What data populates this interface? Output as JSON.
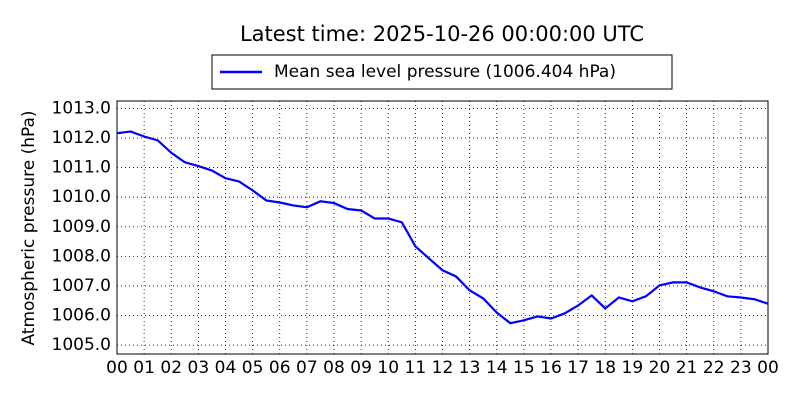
{
  "chart_data": {
    "type": "line",
    "title": "Latest time: 2025-10-26 00:00:00 UTC",
    "ylabel": "Atmospheric pressure (hPa)",
    "x": [
      0,
      0.5,
      1,
      1.5,
      2,
      2.5,
      3,
      3.5,
      4,
      4.5,
      5,
      5.5,
      6,
      6.5,
      7,
      7.5,
      8,
      8.5,
      9,
      9.5,
      10,
      10.5,
      11,
      11.5,
      12,
      12.5,
      13,
      13.5,
      14,
      14.5,
      15,
      15.5,
      16,
      16.5,
      17,
      17.5,
      18,
      18.5,
      19,
      19.5,
      20,
      20.5,
      21,
      21.5,
      22,
      22.5,
      23,
      23.5,
      24
    ],
    "series": [
      {
        "name": "Mean sea level pressure (1006.404 hPa)",
        "color": "#0000ff",
        "values": [
          1012.16,
          1012.22,
          1012.05,
          1011.92,
          1011.5,
          1011.18,
          1011.05,
          1010.9,
          1010.64,
          1010.53,
          1010.23,
          1009.89,
          1009.82,
          1009.72,
          1009.66,
          1009.86,
          1009.8,
          1009.6,
          1009.55,
          1009.28,
          1009.28,
          1009.15,
          1008.34,
          1007.93,
          1007.53,
          1007.32,
          1006.85,
          1006.58,
          1006.1,
          1005.74,
          1005.84,
          1005.97,
          1005.9,
          1006.07,
          1006.34,
          1006.68,
          1006.24,
          1006.61,
          1006.48,
          1006.65,
          1007.02,
          1007.12,
          1007.12,
          1006.95,
          1006.82,
          1006.65,
          1006.61,
          1006.55,
          1006.4
        ]
      }
    ],
    "xlim": [
      0,
      24
    ],
    "xticks": [
      {
        "value": 0,
        "label": "00"
      },
      {
        "value": 1,
        "label": "01"
      },
      {
        "value": 2,
        "label": "02"
      },
      {
        "value": 3,
        "label": "03"
      },
      {
        "value": 4,
        "label": "04"
      },
      {
        "value": 5,
        "label": "05"
      },
      {
        "value": 6,
        "label": "06"
      },
      {
        "value": 7,
        "label": "07"
      },
      {
        "value": 8,
        "label": "08"
      },
      {
        "value": 9,
        "label": "09"
      },
      {
        "value": 10,
        "label": "10"
      },
      {
        "value": 11,
        "label": "11"
      },
      {
        "value": 12,
        "label": "12"
      },
      {
        "value": 13,
        "label": "13"
      },
      {
        "value": 14,
        "label": "14"
      },
      {
        "value": 15,
        "label": "15"
      },
      {
        "value": 16,
        "label": "16"
      },
      {
        "value": 17,
        "label": "17"
      },
      {
        "value": 18,
        "label": "18"
      },
      {
        "value": 19,
        "label": "19"
      },
      {
        "value": 20,
        "label": "20"
      },
      {
        "value": 21,
        "label": "21"
      },
      {
        "value": 22,
        "label": "22"
      },
      {
        "value": 23,
        "label": "23"
      },
      {
        "value": 24,
        "label": "00"
      }
    ],
    "ylim": [
      1004.7,
      1013.25
    ],
    "yticks": [
      {
        "value": 1005,
        "label": "1005.0"
      },
      {
        "value": 1006,
        "label": "1006.0"
      },
      {
        "value": 1007,
        "label": "1007.0"
      },
      {
        "value": 1008,
        "label": "1008.0"
      },
      {
        "value": 1009,
        "label": "1009.0"
      },
      {
        "value": 1010,
        "label": "1010.0"
      },
      {
        "value": 1011,
        "label": "1011.0"
      },
      {
        "value": 1012,
        "label": "1012.0"
      },
      {
        "value": 1013,
        "label": "1013.0"
      }
    ],
    "grid": true,
    "legend": "top"
  }
}
